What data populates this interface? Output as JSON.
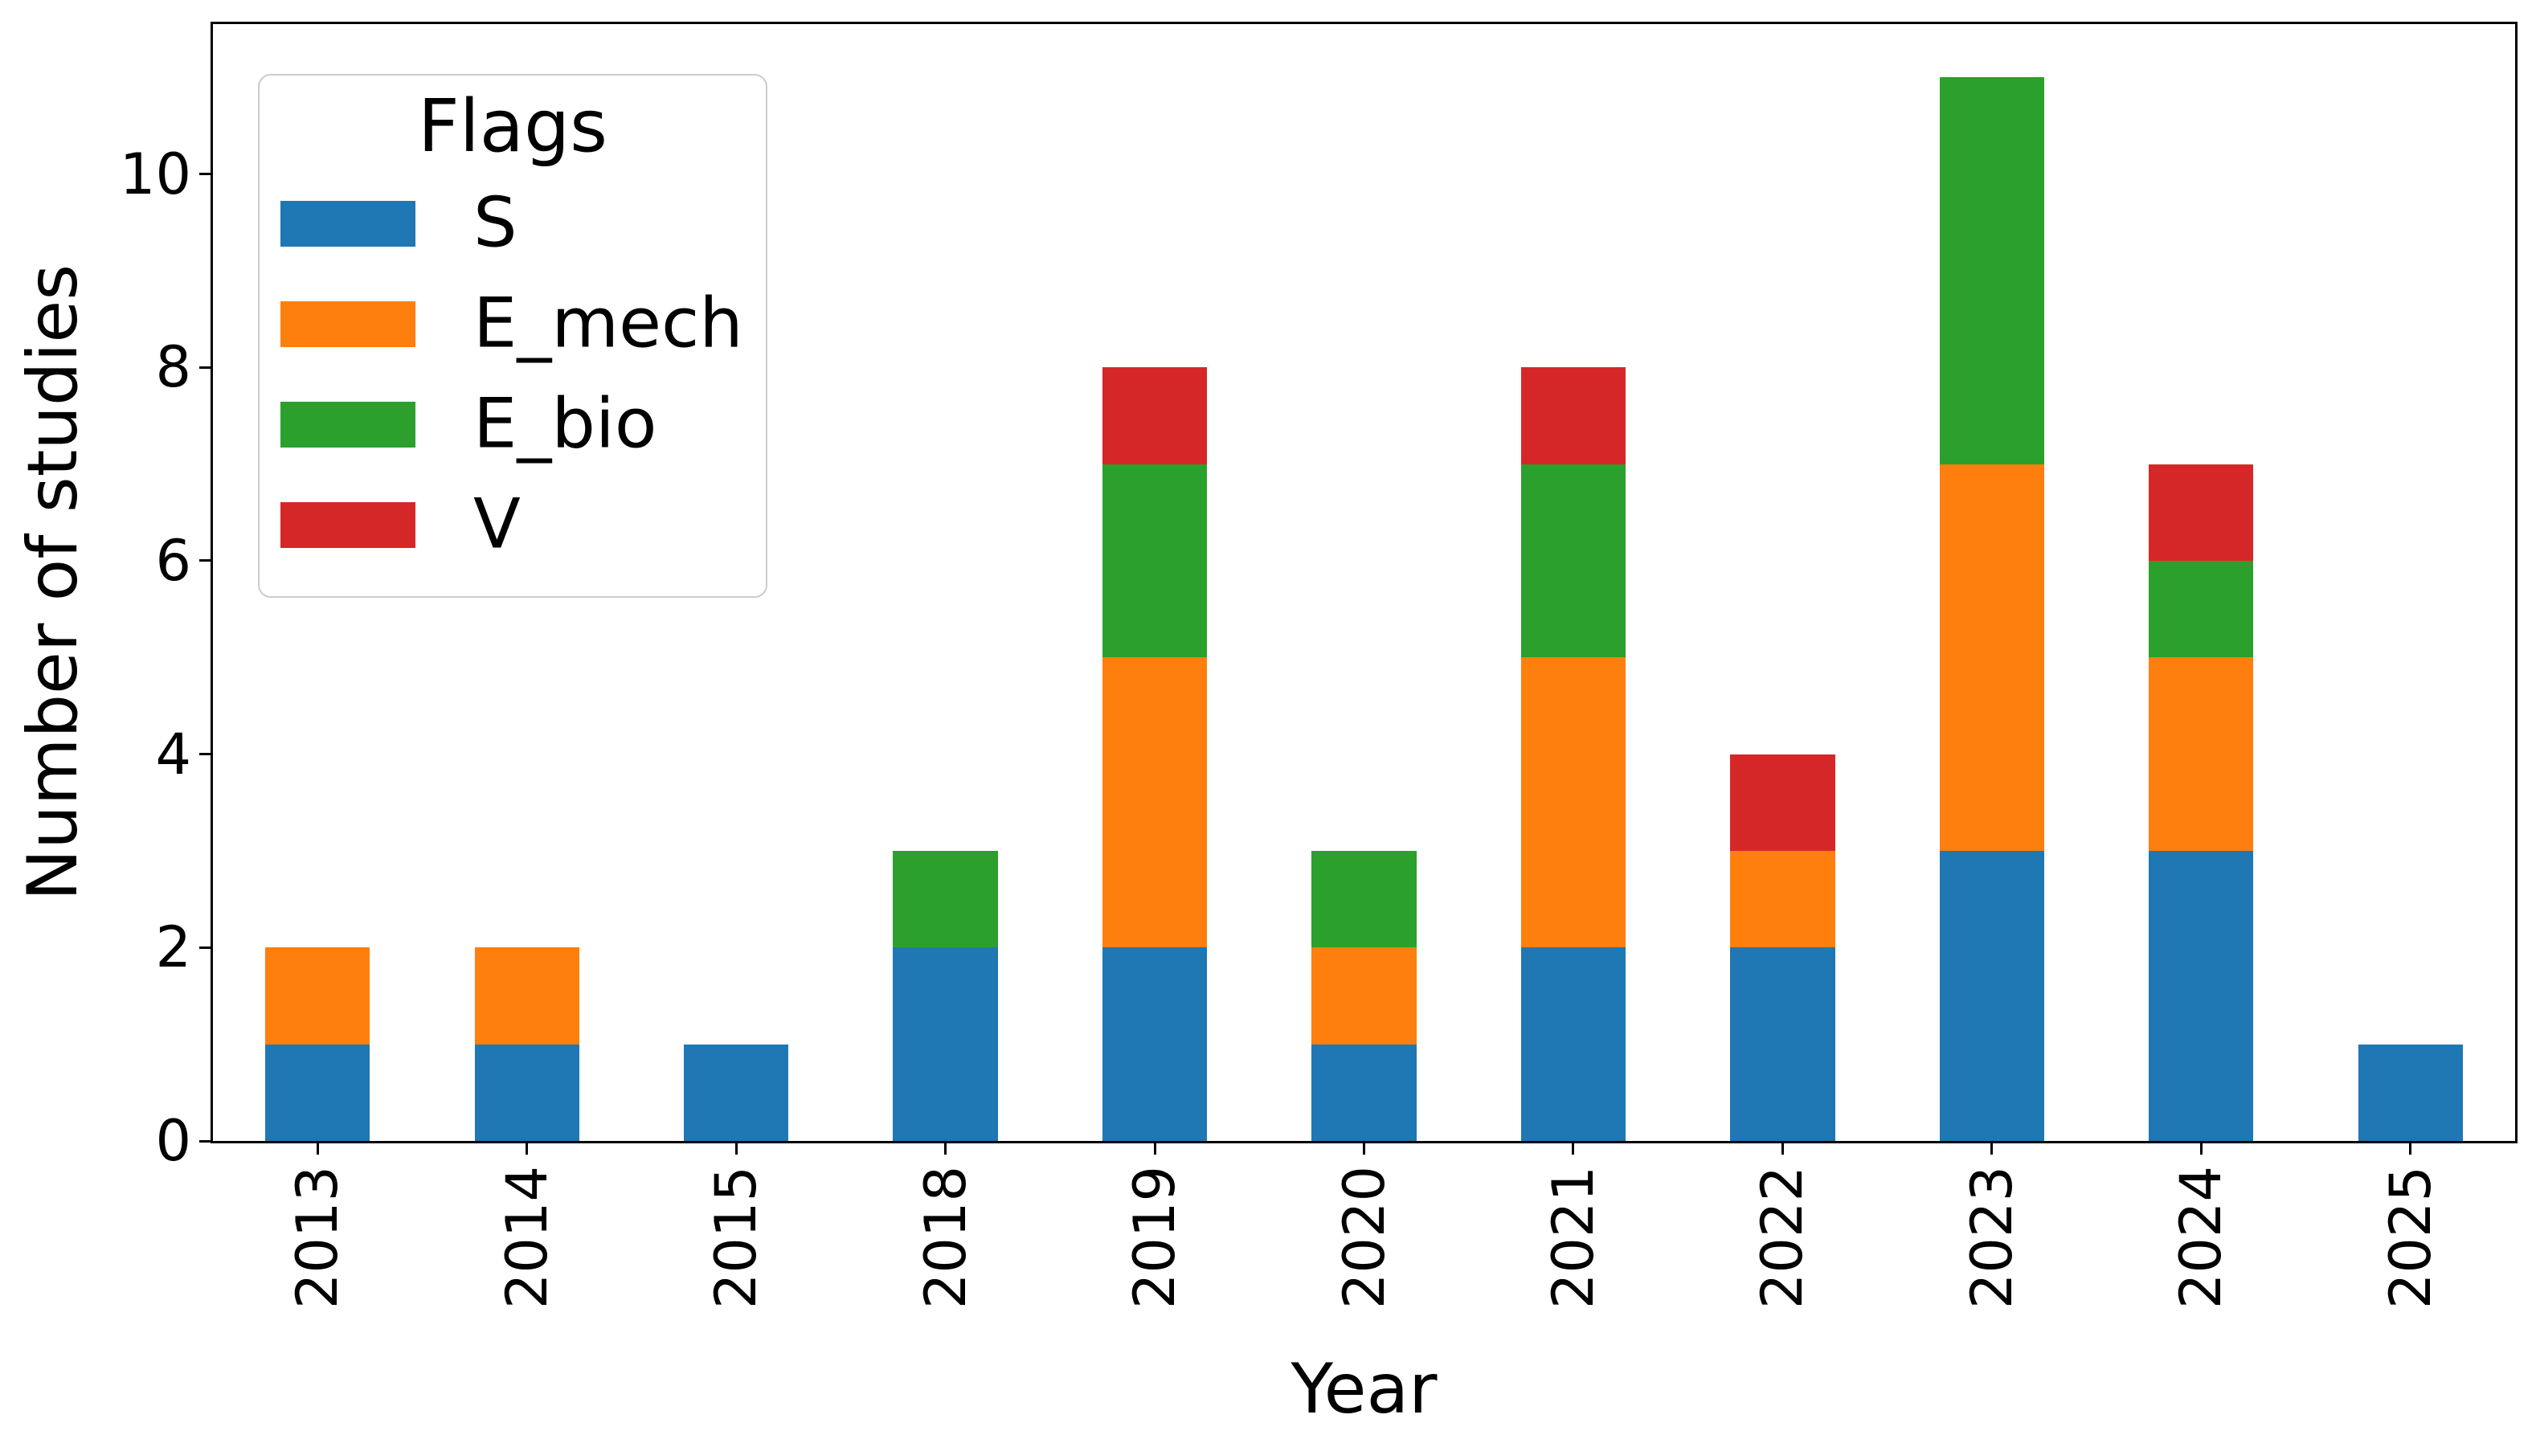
{
  "figure": {
    "background": "#ffffff",
    "spine_color": "#000000",
    "tick_color": "#000000"
  },
  "chart_data": {
    "type": "bar",
    "stacked": true,
    "title": "",
    "xlabel": "Year",
    "ylabel": "Number of studies",
    "categories": [
      "2013",
      "2014",
      "2015",
      "2018",
      "2019",
      "2020",
      "2021",
      "2022",
      "2023",
      "2024",
      "2025"
    ],
    "series": [
      {
        "name": "S",
        "color": "#1f77b4",
        "values": [
          1,
          1,
          1,
          2,
          2,
          1,
          2,
          2,
          3,
          3,
          1
        ]
      },
      {
        "name": "E_mech",
        "color": "#ff7f0e",
        "values": [
          1,
          1,
          0,
          0,
          3,
          1,
          3,
          1,
          4,
          2,
          0
        ]
      },
      {
        "name": "E_bio",
        "color": "#2ca02c",
        "values": [
          0,
          0,
          0,
          1,
          2,
          1,
          2,
          0,
          4,
          1,
          0
        ]
      },
      {
        "name": "V",
        "color": "#d62728",
        "values": [
          0,
          0,
          0,
          0,
          1,
          0,
          1,
          1,
          0,
          1,
          0
        ]
      }
    ],
    "yticks": [
      0,
      2,
      4,
      6,
      8,
      10
    ],
    "ylim": [
      0,
      11.55
    ],
    "grid": false,
    "bar_width_fraction": 0.5,
    "xtick_rotation": 90,
    "legend": {
      "title": "Flags",
      "position": "upper left",
      "entries": [
        "S",
        "E_mech",
        "E_bio",
        "V"
      ]
    }
  }
}
